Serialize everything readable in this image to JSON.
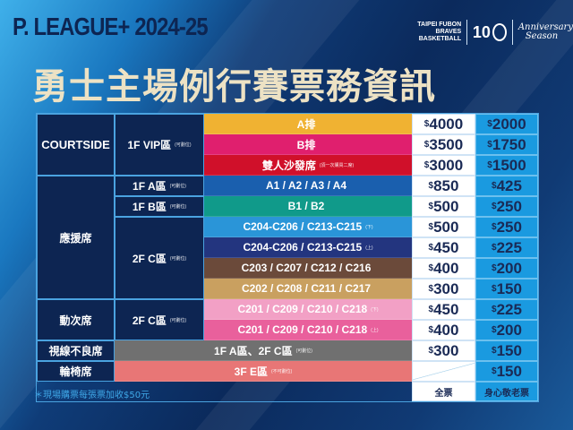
{
  "header": {
    "league": "P. LEAGUE+ 2024-25",
    "team": "TAIPEI FUBON BRAVES",
    "team_sub": "BASKETBALL",
    "ten": "10",
    "anniversary": "Anniversary",
    "season": "Season",
    "title": "勇士主場例行賽票務資訊"
  },
  "colors": {
    "accent": "#1a9ae0",
    "label_bg": "#0d2552",
    "title": "#ede2c4"
  },
  "table": {
    "groups": {
      "courtside": "COURTSIDE",
      "support": "應援席",
      "dong": "動次席",
      "obstructed": "視線不良席",
      "wheelchair": "輪椅席"
    },
    "zones": {
      "vip": "1F VIP區",
      "a": "1F A區",
      "b": "1F B區",
      "c1": "2F C區",
      "c2": "2F C區",
      "note": "(可劃位)"
    },
    "rows": [
      {
        "seat": "A排",
        "note": "",
        "color": "#f0b232",
        "full": "4000",
        "conc": "2000"
      },
      {
        "seat": "B排",
        "note": "",
        "color": "#e01f6e",
        "full": "3500",
        "conc": "1750"
      },
      {
        "seat": "雙人沙發席",
        "note": "(須一次購買二席)",
        "color": "#d0102a",
        "full": "3000",
        "conc": "1500"
      },
      {
        "seat": "A1 / A2 / A3 / A4",
        "note": "",
        "color": "#1a5fae",
        "full": "850",
        "conc": "425"
      },
      {
        "seat": "B1 / B2",
        "note": "",
        "color": "#109a8a",
        "full": "500",
        "conc": "250"
      },
      {
        "seat": "C204-C206 / C213-C215",
        "note": "(下)",
        "color": "#2a95d8",
        "full": "500",
        "conc": "250"
      },
      {
        "seat": "C204-C206 / C213-C215",
        "note": "(上)",
        "color": "#23357f",
        "full": "450",
        "conc": "225"
      },
      {
        "seat": "C203 / C207 / C212 / C216",
        "note": "",
        "color": "#6b4a3a",
        "full": "400",
        "conc": "200"
      },
      {
        "seat": "C202 / C208 / C211 / C217",
        "note": "",
        "color": "#c9a060",
        "full": "300",
        "conc": "150"
      },
      {
        "seat": "C201 / C209 / C210 / C218",
        "note": "(下)",
        "color": "#f2a0c5",
        "full": "450",
        "conc": "225"
      },
      {
        "seat": "C201 / C209 / C210 / C218",
        "note": "(上)",
        "color": "#e9609c",
        "full": "400",
        "conc": "200"
      },
      {
        "seat": "1F A區、2F C區",
        "note": "(可劃位)",
        "color": "#707070",
        "full": "300",
        "conc": "150"
      },
      {
        "seat": "3F E區",
        "note": "(不可劃位)",
        "color": "#e87676",
        "full": "",
        "conc": "150"
      }
    ],
    "currency": "$",
    "headers": {
      "full": "全票",
      "conc": "身心敬老票"
    }
  },
  "footnote": "＊現場購票每張票加收$50元"
}
